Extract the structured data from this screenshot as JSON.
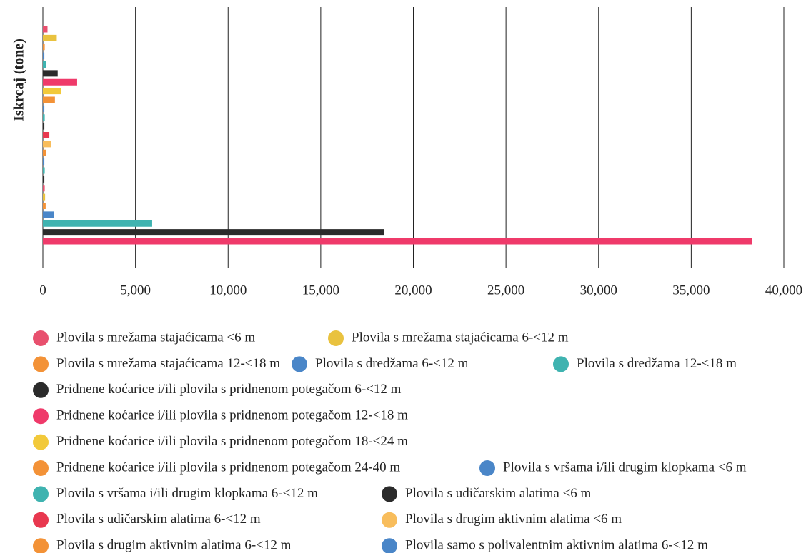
{
  "chart_data": {
    "type": "hbar",
    "ylabel": "Iskrcaj (tone)",
    "xlim": [
      0,
      40000
    ],
    "xticks": [
      0,
      {
        "value": 5000,
        "label": "5,000"
      },
      {
        "value": 10000,
        "label": "10,000"
      },
      {
        "value": 15000,
        "label": "15,000"
      },
      {
        "value": 20000,
        "label": "20,000"
      },
      {
        "value": 25000,
        "label": "25,000"
      },
      {
        "value": 30000,
        "label": "30,000"
      },
      {
        "value": 35000,
        "label": "35,000"
      },
      {
        "value": 40000,
        "label": "40,000"
      }
    ],
    "grid": true,
    "series": [
      {
        "name": "Plovila s mrežama stajaćicama <6 m",
        "color": "#e8506e",
        "values": [
          250
        ]
      },
      {
        "name": "Plovila s mrežama stajaćicama 6-<12 m",
        "color": "#e9c23f",
        "values": [
          750
        ]
      },
      {
        "name": "Plovila s mrežama stajaćicama 12-<18 m",
        "color": "#f39237",
        "values": [
          100
        ]
      },
      {
        "name": "Plovila s dredžama 6-<12 m",
        "color": "#4a86c8",
        "values": [
          80
        ]
      },
      {
        "name": "Plovila s dredžama 12-<18 m",
        "color": "#3fb3b0",
        "values": [
          180
        ]
      },
      {
        "name": "Pridnene koćarice i/ili plovila s pridnenom potegačom 6-<12 m",
        "color": "#2b2b2b",
        "values": [
          800
        ]
      },
      {
        "name": "Pridnene koćarice i/ili plovila s pridnenom potegačom 12-<18 m",
        "color": "#ef3a6a",
        "values": [
          1850
        ]
      },
      {
        "name": "Pridnene koćarice i/ili plovila s pridnenom potegačom 18-<24 m",
        "color": "#f2c93a",
        "values": [
          1000
        ]
      },
      {
        "name": "Pridnene koćarice i/ili plovila s pridnenom potegačom 24-40 m",
        "color": "#f39237",
        "values": [
          650
        ]
      },
      {
        "name": "Plovila s vršama i/ili drugim klopkama <6 m",
        "color": "#4a86c8",
        "values": [
          80
        ]
      },
      {
        "name": "Plovila s vršama i/ili drugim klopkama 6-<12 m",
        "color": "#3fb3b0",
        "values": [
          100
        ]
      },
      {
        "name": "Plovila s udičarskim alatima <6 m",
        "color": "#2b2b2b",
        "values": [
          80
        ]
      },
      {
        "name": "Plovila s udičarskim alatima 6-<12 m",
        "color": "#e8384f",
        "values": [
          350
        ]
      },
      {
        "name": "Plovila s drugim aktivnim alatima <6 m",
        "color": "#f8bd5c",
        "values": [
          450
        ]
      },
      {
        "name": "Plovila s drugim aktivnim alatima 6-<12 m",
        "color": "#f39237",
        "values": [
          180
        ]
      },
      {
        "name": "Plovila samo s polivalentnim aktivnim alatima 6-<12 m",
        "color": "#4a86c8",
        "values": [
          80
        ]
      },
      {
        "name": null,
        "color": "#3fb3b0",
        "values": [
          100
        ]
      },
      {
        "name": null,
        "color": "#2b2b2b",
        "values": [
          80
        ]
      },
      {
        "name": null,
        "color": "#e8506e",
        "values": [
          100
        ]
      },
      {
        "name": null,
        "color": "#e9c23f",
        "values": [
          120
        ]
      },
      {
        "name": null,
        "color": "#f39237",
        "values": [
          150
        ]
      },
      {
        "name": null,
        "color": "#4a86c8",
        "values": [
          600
        ]
      },
      {
        "name": null,
        "color": "#3fb3b0",
        "values": [
          5900
        ]
      },
      {
        "name": null,
        "color": "#2b2b2b",
        "values": [
          18400
        ]
      },
      {
        "name": null,
        "color": "#ef3a6a",
        "values": [
          38300
        ]
      }
    ]
  }
}
